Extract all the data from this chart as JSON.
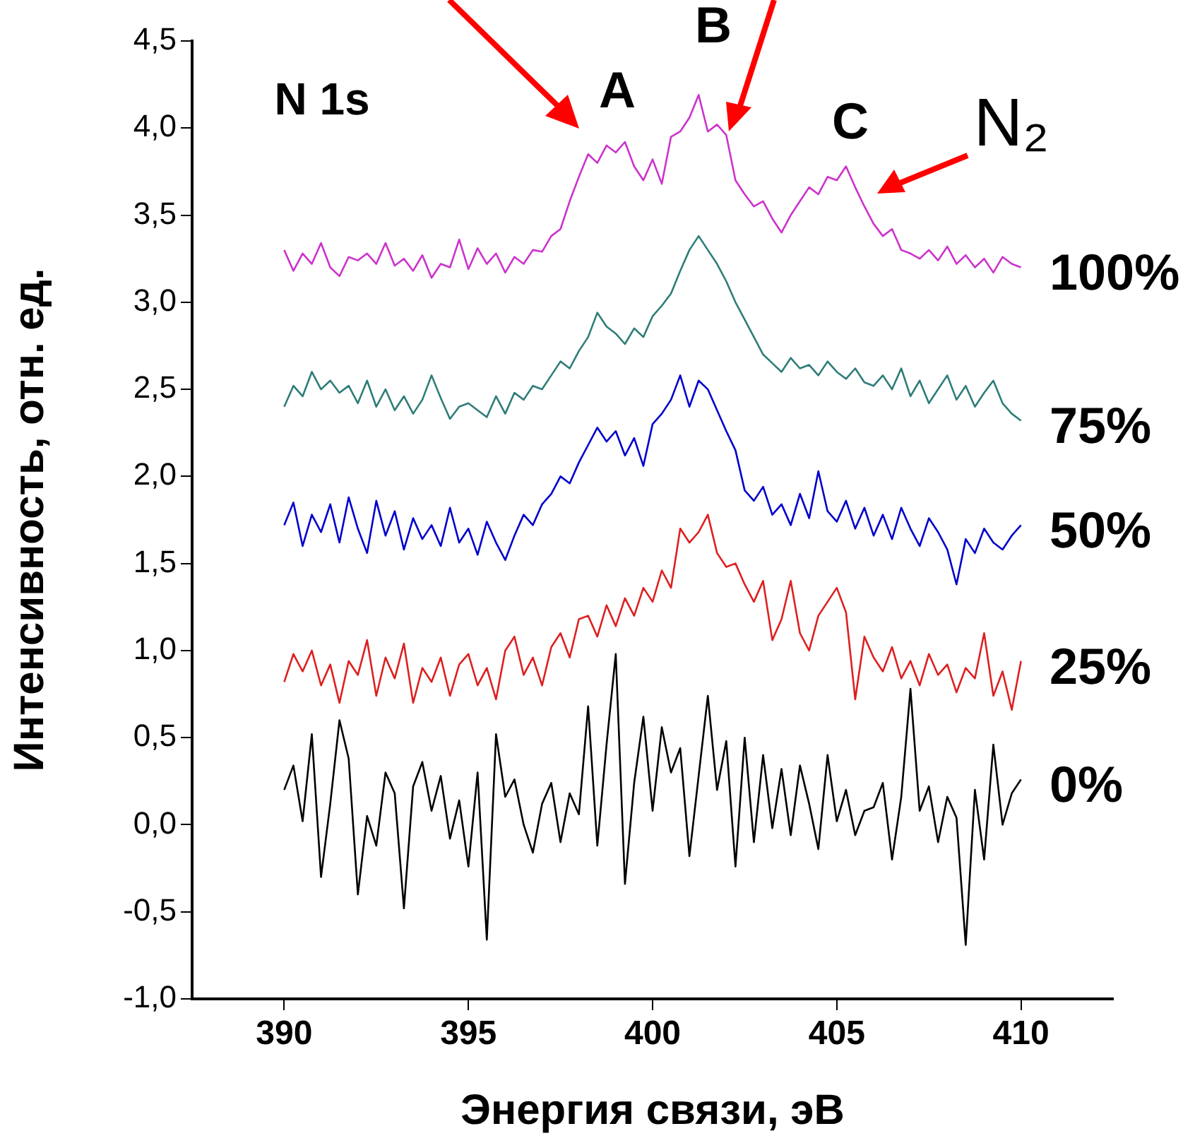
{
  "chart_data": {
    "type": "line",
    "xlabel": "Энергия связи, эВ",
    "ylabel": "Интенсивность, отн. ед.",
    "xlim": [
      387.5,
      412.5
    ],
    "xticks": [
      390,
      395,
      400,
      405,
      410
    ],
    "ylim": [
      -1.0,
      4.5
    ],
    "yticks": [
      {
        "value": -1.0,
        "label": "-1,0"
      },
      {
        "value": -0.5,
        "label": "-0,5"
      },
      {
        "value": 0.0,
        "label": "0,0"
      },
      {
        "value": 0.5,
        "label": "0,5"
      },
      {
        "value": 1.0,
        "label": "1,0"
      },
      {
        "value": 1.5,
        "label": "1,5"
      },
      {
        "value": 2.0,
        "label": "2,0"
      },
      {
        "value": 2.5,
        "label": "2,5"
      },
      {
        "value": 3.0,
        "label": "3,0"
      },
      {
        "value": 3.5,
        "label": "3,5"
      },
      {
        "value": 4.0,
        "label": "4,0"
      },
      {
        "value": 4.5,
        "label": "4,5"
      }
    ],
    "grid": false,
    "legend": false,
    "marker": "none",
    "line_style": "solid",
    "x": [
      390,
      390.25,
      390.5,
      390.75,
      391,
      391.25,
      391.5,
      391.75,
      392,
      392.25,
      392.5,
      392.75,
      393,
      393.25,
      393.5,
      393.75,
      394,
      394.25,
      394.5,
      394.75,
      395,
      395.25,
      395.5,
      395.75,
      396,
      396.25,
      396.5,
      396.75,
      397,
      397.25,
      397.5,
      397.75,
      398,
      398.25,
      398.5,
      398.75,
      399,
      399.25,
      399.5,
      399.75,
      400,
      400.25,
      400.5,
      400.75,
      401,
      401.25,
      401.5,
      401.75,
      402,
      402.25,
      402.5,
      402.75,
      403,
      403.25,
      403.5,
      403.75,
      404,
      404.25,
      404.5,
      404.75,
      405,
      405.25,
      405.5,
      405.75,
      406,
      406.25,
      406.5,
      406.75,
      407,
      407.25,
      407.5,
      407.75,
      408,
      408.25,
      408.5,
      408.75,
      409,
      409.25,
      409.5,
      409.75,
      410
    ],
    "series": [
      {
        "name": "100%",
        "color": "#cc33cc",
        "values": [
          3.3,
          3.18,
          3.28,
          3.22,
          3.34,
          3.2,
          3.15,
          3.26,
          3.24,
          3.28,
          3.22,
          3.34,
          3.21,
          3.25,
          3.18,
          3.27,
          3.14,
          3.22,
          3.2,
          3.36,
          3.19,
          3.31,
          3.22,
          3.28,
          3.17,
          3.26,
          3.22,
          3.3,
          3.29,
          3.38,
          3.42,
          3.58,
          3.72,
          3.85,
          3.8,
          3.9,
          3.86,
          3.92,
          3.78,
          3.7,
          3.82,
          3.68,
          3.95,
          3.98,
          4.06,
          4.19,
          3.98,
          4.02,
          3.96,
          3.7,
          3.62,
          3.55,
          3.58,
          3.48,
          3.4,
          3.5,
          3.58,
          3.66,
          3.62,
          3.72,
          3.7,
          3.78,
          3.66,
          3.55,
          3.45,
          3.38,
          3.42,
          3.3,
          3.28,
          3.25,
          3.3,
          3.24,
          3.32,
          3.22,
          3.27,
          3.2,
          3.25,
          3.17,
          3.26,
          3.22,
          3.2
        ]
      },
      {
        "name": "75%",
        "color": "#2e7d78",
        "values": [
          2.4,
          2.52,
          2.46,
          2.6,
          2.5,
          2.55,
          2.48,
          2.52,
          2.42,
          2.55,
          2.4,
          2.5,
          2.38,
          2.46,
          2.36,
          2.44,
          2.58,
          2.45,
          2.33,
          2.4,
          2.42,
          2.38,
          2.34,
          2.46,
          2.36,
          2.48,
          2.44,
          2.52,
          2.5,
          2.58,
          2.66,
          2.62,
          2.72,
          2.8,
          2.94,
          2.86,
          2.82,
          2.76,
          2.85,
          2.8,
          2.92,
          2.98,
          3.05,
          3.18,
          3.3,
          3.38,
          3.3,
          3.22,
          3.12,
          3.0,
          2.9,
          2.8,
          2.7,
          2.65,
          2.6,
          2.68,
          2.62,
          2.64,
          2.58,
          2.66,
          2.6,
          2.56,
          2.62,
          2.54,
          2.52,
          2.58,
          2.5,
          2.62,
          2.46,
          2.55,
          2.42,
          2.5,
          2.58,
          2.44,
          2.52,
          2.4,
          2.48,
          2.55,
          2.42,
          2.36,
          2.32
        ]
      },
      {
        "name": "50%",
        "color": "#0000cc",
        "values": [
          1.72,
          1.85,
          1.6,
          1.78,
          1.68,
          1.84,
          1.62,
          1.88,
          1.7,
          1.56,
          1.86,
          1.66,
          1.8,
          1.58,
          1.76,
          1.64,
          1.72,
          1.6,
          1.82,
          1.62,
          1.7,
          1.55,
          1.74,
          1.62,
          1.52,
          1.66,
          1.78,
          1.72,
          1.84,
          1.9,
          2.0,
          1.96,
          2.08,
          2.18,
          2.28,
          2.2,
          2.26,
          2.12,
          2.22,
          2.06,
          2.3,
          2.36,
          2.44,
          2.58,
          2.4,
          2.55,
          2.5,
          2.38,
          2.26,
          2.15,
          1.92,
          1.86,
          1.94,
          1.78,
          1.84,
          1.72,
          1.9,
          1.76,
          2.03,
          1.8,
          1.74,
          1.86,
          1.7,
          1.82,
          1.66,
          1.78,
          1.64,
          1.82,
          1.7,
          1.6,
          1.76,
          1.68,
          1.58,
          1.38,
          1.64,
          1.56,
          1.7,
          1.62,
          1.58,
          1.66,
          1.72
        ]
      },
      {
        "name": "25%",
        "color": "#dd2020",
        "values": [
          0.82,
          0.98,
          0.88,
          1.0,
          0.8,
          0.92,
          0.7,
          0.94,
          0.86,
          1.06,
          0.74,
          0.96,
          0.84,
          1.04,
          0.7,
          0.9,
          0.82,
          0.96,
          0.74,
          0.92,
          0.98,
          0.8,
          0.9,
          0.72,
          1.0,
          1.08,
          0.86,
          0.96,
          0.8,
          1.02,
          1.1,
          0.96,
          1.18,
          1.2,
          1.08,
          1.26,
          1.14,
          1.3,
          1.2,
          1.36,
          1.28,
          1.46,
          1.36,
          1.7,
          1.62,
          1.68,
          1.78,
          1.56,
          1.48,
          1.5,
          1.38,
          1.28,
          1.4,
          1.06,
          1.18,
          1.4,
          1.1,
          1.0,
          1.2,
          1.28,
          1.36,
          1.22,
          0.72,
          1.08,
          0.96,
          0.88,
          1.02,
          0.84,
          0.94,
          0.8,
          0.98,
          0.86,
          0.92,
          0.76,
          0.9,
          0.84,
          1.1,
          0.74,
          0.88,
          0.66,
          0.94
        ]
      },
      {
        "name": "0%",
        "color": "#000000",
        "values": [
          0.2,
          0.34,
          0.02,
          0.52,
          -0.3,
          0.12,
          0.6,
          0.38,
          -0.4,
          0.05,
          -0.12,
          0.3,
          0.18,
          -0.48,
          0.22,
          0.36,
          0.08,
          0.28,
          -0.08,
          0.14,
          -0.24,
          0.3,
          -0.66,
          0.52,
          0.16,
          0.26,
          0.0,
          -0.16,
          0.12,
          0.24,
          -0.1,
          0.18,
          0.06,
          0.68,
          -0.12,
          0.46,
          0.98,
          -0.34,
          0.24,
          0.62,
          0.08,
          0.56,
          0.3,
          0.44,
          -0.18,
          0.28,
          0.74,
          0.2,
          0.48,
          -0.24,
          0.5,
          -0.1,
          0.4,
          -0.02,
          0.32,
          -0.06,
          0.34,
          0.12,
          -0.14,
          0.4,
          0.02,
          0.2,
          -0.06,
          0.08,
          0.1,
          0.24,
          -0.2,
          0.16,
          0.78,
          0.08,
          0.22,
          -0.1,
          0.16,
          0.04,
          -0.69,
          0.2,
          -0.2,
          0.46,
          0.0,
          0.18,
          0.26
        ]
      }
    ],
    "annotations": [
      "N 1s",
      "A",
      "B",
      "C",
      "N₂"
    ]
  }
}
